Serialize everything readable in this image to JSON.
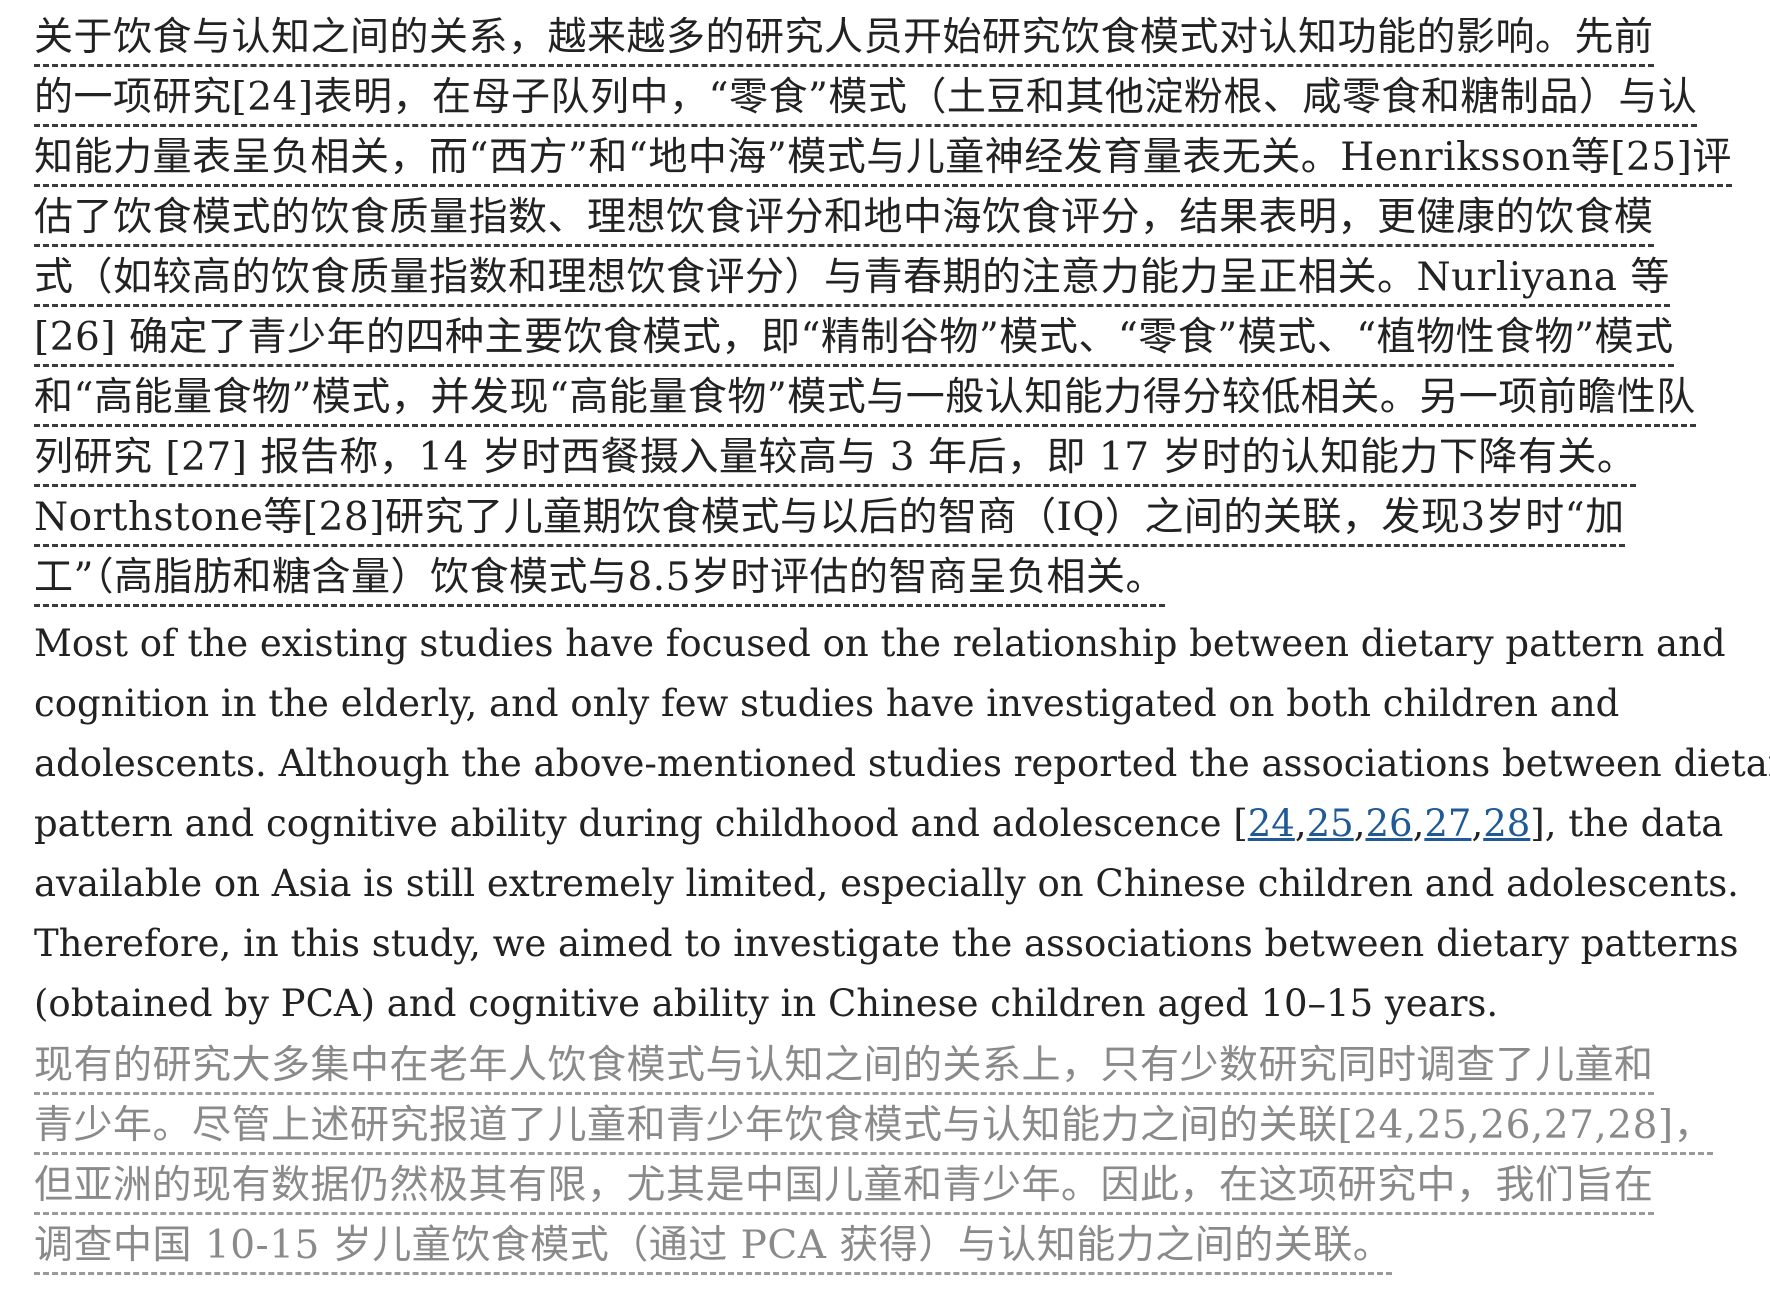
{
  "zh_paragraph_1": {
    "lines": [
      "关于饮食与认知之间的关系，越来越多的研究人员开始研究饮食模式对认知功能的影响。先前",
      "的一项研究[24]表明，在母子队列中，“零食”模式（土豆和其他淀粉根、咸零食和糖制品）与认",
      "知能力量表呈负相关，而“西方”和“地中海”模式与儿童神经发育量表无关。Henriksson等[25]评",
      "估了饮食模式的饮食质量指数、理想饮食评分和地中海饮食评分，结果表明，更健康的饮食模",
      "式（如较高的饮食质量指数和理想饮食评分）与青春期的注意力能力呈正相关。Nurliyana 等",
      "[26] 确定了青少年的四种主要饮食模式，即“精制谷物”模式、“零食”模式、“植物性食物”模式",
      "和“高能量食物”模式，并发现“高能量食物”模式与一般认知能力得分较低相关。另一项前瞻性队",
      "列研究 [27] 报告称，14 岁时西餐摄入量较高与 3 年后，即 17 岁时的认知能力下降有关。",
      "Northstone等[28]研究了儿童期饮食模式与以后的智商（IQ）之间的关联，发现3岁时“加",
      "工”（高脂肪和糖含量）饮食模式与8.5岁时评估的智商呈负相关。"
    ]
  },
  "en_paragraph": {
    "line_1": "Most of the existing studies have focused on the relationship between dietary pattern and",
    "line_2": "cognition in the elderly, and only few studies have investigated on both children and",
    "line_3": "adolescents. Although the above-mentioned studies reported the associations between dietary",
    "line_4_before": "pattern and cognitive ability during childhood and adolescence [",
    "refs": [
      "24",
      "25",
      "26",
      "27",
      "28"
    ],
    "ref_separator": ",",
    "line_4_after": "], the data",
    "line_5": "available on Asia is still extremely limited, especially on Chinese children and adolescents.",
    "line_6": "Therefore, in this study, we aimed to investigate the associations between dietary patterns",
    "line_7": "(obtained by PCA) and cognitive ability in Chinese children aged 10–15 years."
  },
  "zh_paragraph_2": {
    "lines": [
      "现有的研究大多集中在老年人饮食模式与认知之间的关系上，只有少数研究同时调查了儿童和",
      "青少年。尽管上述研究报道了儿童和青少年饮食模式与认知能力之间的关联[24,25,26,27,28]，",
      "但亚洲的现有数据仍然极其有限，尤其是中国儿童和青少年。因此，在这项研究中，我们旨在",
      "调查中国 10-15 岁儿童饮食模式（通过 PCA 获得）与认知能力之间的关联。"
    ]
  },
  "colors": {
    "text": "#222222",
    "muted_text": "#8a8a8a",
    "link": "#1f5a96"
  }
}
